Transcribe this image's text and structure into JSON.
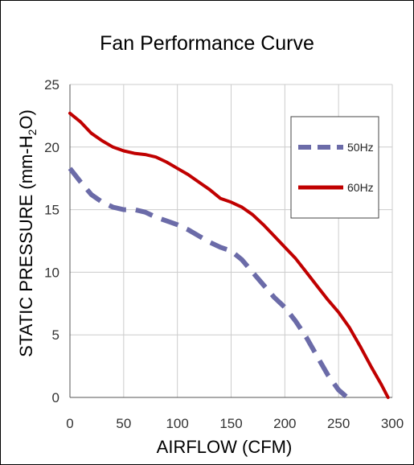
{
  "chart_data": {
    "type": "line",
    "title": "Fan Performance Curve",
    "xlabel": "AIRFLOW (CFM)",
    "ylabel_parts": [
      "STATIC PRESSURE (mm-H",
      "2",
      "O)"
    ],
    "xlim": [
      0,
      300
    ],
    "ylim": [
      0,
      25
    ],
    "xticks": [
      0,
      50,
      100,
      150,
      200,
      250,
      300
    ],
    "yticks": [
      0,
      5,
      10,
      15,
      20,
      25
    ],
    "grid": true,
    "legend_position": "top-right",
    "series": [
      {
        "name": "50Hz",
        "color": "#6b6ba8",
        "dashed": true,
        "points": [
          [
            0,
            18.3
          ],
          [
            10,
            17.2
          ],
          [
            20,
            16.2
          ],
          [
            30,
            15.6
          ],
          [
            40,
            15.2
          ],
          [
            50,
            15.0
          ],
          [
            60,
            15.0
          ],
          [
            70,
            14.8
          ],
          [
            80,
            14.4
          ],
          [
            90,
            14.1
          ],
          [
            100,
            13.8
          ],
          [
            110,
            13.4
          ],
          [
            120,
            12.9
          ],
          [
            130,
            12.4
          ],
          [
            140,
            12.0
          ],
          [
            150,
            11.7
          ],
          [
            160,
            11.0
          ],
          [
            170,
            10.0
          ],
          [
            180,
            9.0
          ],
          [
            190,
            8.0
          ],
          [
            200,
            7.2
          ],
          [
            210,
            6.1
          ],
          [
            220,
            4.8
          ],
          [
            230,
            3.3
          ],
          [
            240,
            1.8
          ],
          [
            250,
            0.6
          ],
          [
            258,
            0
          ]
        ]
      },
      {
        "name": "60Hz",
        "color": "#c00000",
        "dashed": false,
        "points": [
          [
            0,
            22.7
          ],
          [
            10,
            22.0
          ],
          [
            20,
            21.1
          ],
          [
            30,
            20.5
          ],
          [
            40,
            20.0
          ],
          [
            50,
            19.7
          ],
          [
            60,
            19.5
          ],
          [
            70,
            19.4
          ],
          [
            80,
            19.2
          ],
          [
            90,
            18.8
          ],
          [
            100,
            18.3
          ],
          [
            110,
            17.8
          ],
          [
            120,
            17.2
          ],
          [
            130,
            16.6
          ],
          [
            140,
            15.9
          ],
          [
            150,
            15.6
          ],
          [
            160,
            15.2
          ],
          [
            170,
            14.6
          ],
          [
            180,
            13.8
          ],
          [
            190,
            12.9
          ],
          [
            200,
            12.0
          ],
          [
            210,
            11.1
          ],
          [
            220,
            10.0
          ],
          [
            230,
            8.9
          ],
          [
            240,
            7.8
          ],
          [
            250,
            6.8
          ],
          [
            260,
            5.6
          ],
          [
            270,
            4.1
          ],
          [
            280,
            2.5
          ],
          [
            290,
            1.0
          ],
          [
            296,
            0
          ]
        ]
      }
    ]
  }
}
